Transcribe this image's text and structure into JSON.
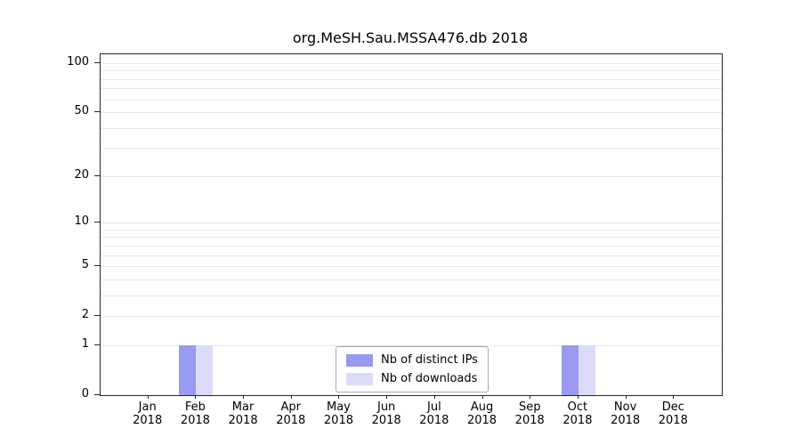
{
  "chart_data": {
    "type": "bar",
    "title": "org.MeSH.Sau.MSSA476.db 2018",
    "categories": [
      "Jan",
      "Feb",
      "Mar",
      "Apr",
      "May",
      "Jun",
      "Jul",
      "Aug",
      "Sep",
      "Oct",
      "Nov",
      "Dec"
    ],
    "category_year": "2018",
    "series": [
      {
        "name": "Nb of distinct IPs",
        "color": "#9999f2",
        "values": [
          0,
          1,
          0,
          0,
          0,
          0,
          0,
          0,
          0,
          1,
          0,
          0
        ]
      },
      {
        "name": "Nb of downloads",
        "color": "#dcdcfa",
        "values": [
          0,
          1,
          0,
          0,
          0,
          0,
          0,
          0,
          0,
          1,
          0,
          0
        ]
      }
    ],
    "y_axis": {
      "scale": "log1p",
      "ticks": [
        0,
        1,
        2,
        5,
        10,
        20,
        50,
        100
      ],
      "grid_values": [
        1,
        2,
        3,
        4,
        5,
        6,
        7,
        8,
        9,
        10,
        20,
        30,
        40,
        50,
        60,
        70,
        80,
        90,
        100
      ],
      "ylim": [
        0,
        113
      ]
    },
    "xlabel": "",
    "ylabel": "",
    "legend_position": "bottom-center",
    "grid": "on"
  },
  "colors": {
    "grid": "#e6e6e6",
    "axis": "#262626",
    "background": "#ffffff",
    "text": "#000000"
  }
}
